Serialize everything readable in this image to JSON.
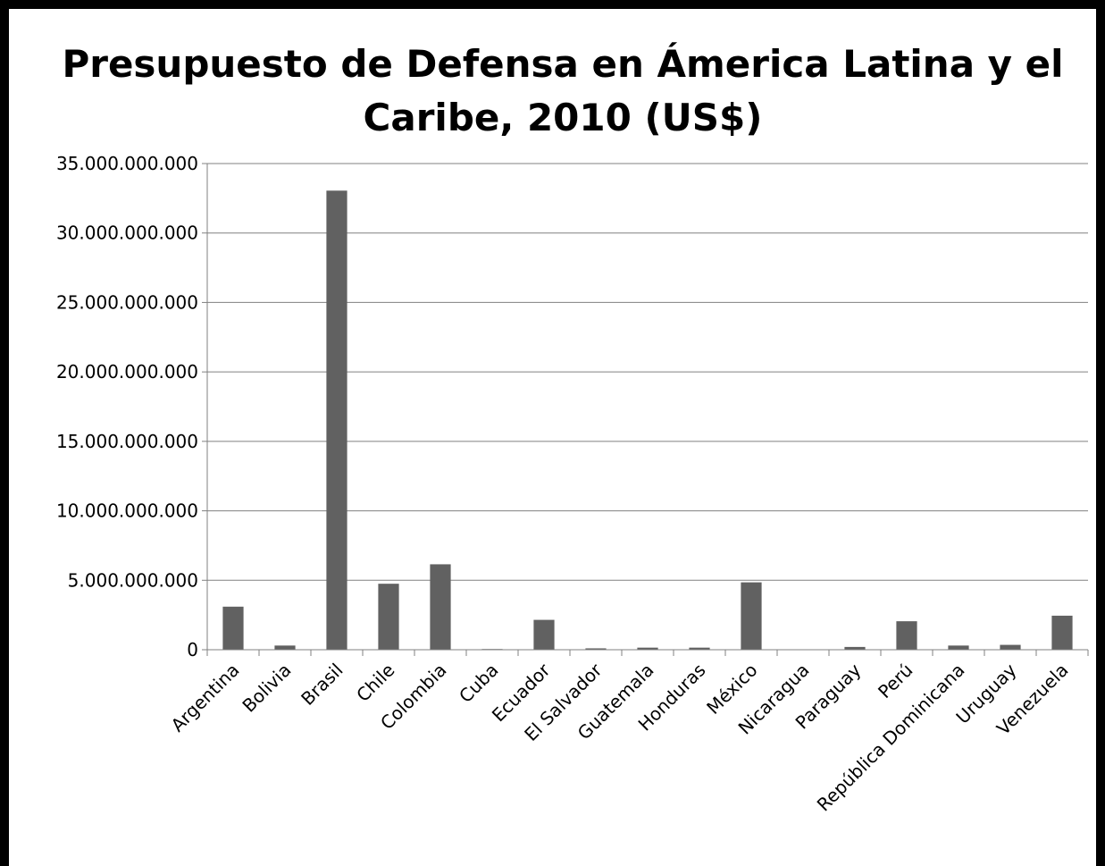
{
  "chart_data": {
    "type": "bar",
    "title": "Presupuesto de Defensa en Ámerica Latina y el Caribe, 2010 (US$)",
    "xlabel": "",
    "ylabel": "",
    "categories": [
      "Argentina",
      "Bolivia",
      "Brasil",
      "Chile",
      "Colombia",
      "Cuba",
      "Ecuador",
      "El Salvador",
      "Guatemala",
      "Honduras",
      "México",
      "Nicaragua",
      "Paraguay",
      "Perú",
      "República Dominicana",
      "Uruguay",
      "Venezuela"
    ],
    "values": [
      3100000000,
      300000000,
      33050000000,
      4750000000,
      6150000000,
      50000000,
      2150000000,
      100000000,
      150000000,
      150000000,
      4850000000,
      0,
      200000000,
      2050000000,
      300000000,
      350000000,
      2450000000
    ],
    "ylim": [
      0,
      35000000000
    ],
    "yticks": [
      "0",
      "5.000.000.000",
      "10.000.000.000",
      "15.000.000.000",
      "20.000.000.000",
      "25.000.000.000",
      "30.000.000.000",
      "35.000.000.000"
    ],
    "grid": true,
    "legend": "none",
    "bar_color": "#616161",
    "gridline_color": "#808080"
  }
}
